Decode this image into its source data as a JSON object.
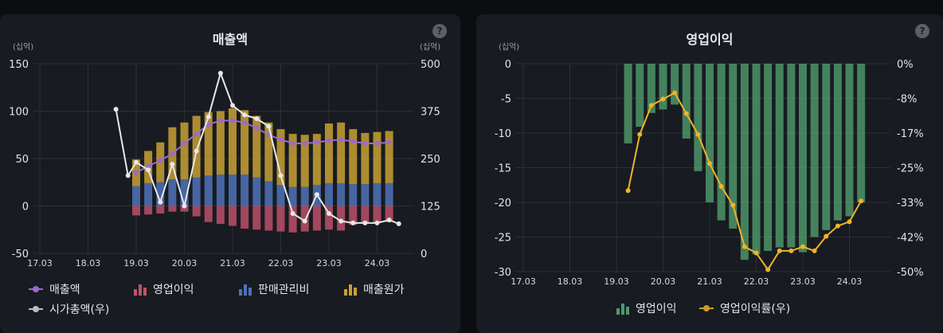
{
  "chart_data": [
    {
      "type": "bar",
      "title": "매출액",
      "y_left": {
        "unit": "(십억)",
        "min": -50,
        "max": 150,
        "ticks": [
          150,
          100,
          50,
          0,
          -50
        ]
      },
      "y_right": {
        "unit": "(십억)",
        "min": 0,
        "max": 500,
        "ticks": [
          500,
          375,
          250,
          125,
          0
        ]
      },
      "x_ticks": [
        "17.03",
        "18.03",
        "19.03",
        "20.03",
        "21.03",
        "22.03",
        "23.03",
        "24.03"
      ],
      "x": [
        19.0,
        19.25,
        19.5,
        19.75,
        20.0,
        20.25,
        20.5,
        20.75,
        21.0,
        21.25,
        21.5,
        21.75,
        22.0,
        22.25,
        22.5,
        22.75,
        23.0,
        23.25,
        23.5,
        23.75,
        24.0,
        24.25
      ],
      "series": [
        {
          "name": "매출원가",
          "kind": "bar-stack",
          "color": "#c9a032",
          "values": [
            28,
            34,
            42,
            55,
            60,
            65,
            67,
            67,
            70,
            68,
            65,
            62,
            59,
            56,
            55,
            54,
            63,
            64,
            58,
            54,
            54,
            55
          ]
        },
        {
          "name": "판매관리비",
          "kind": "bar-stack",
          "color": "#4f72b8",
          "values": [
            21,
            24,
            25,
            28,
            28,
            30,
            32,
            33,
            33,
            33,
            30,
            26,
            22,
            20,
            20,
            22,
            24,
            24,
            23,
            23,
            24,
            24
          ]
        },
        {
          "name": "영업이익",
          "kind": "bar",
          "color": "#c2526a",
          "values": [
            -10,
            -9,
            -8,
            -6,
            -6,
            -11,
            -17,
            -19,
            -21,
            -24,
            -25,
            -26,
            -27,
            -28,
            -27,
            -26,
            -25,
            -26,
            -20,
            -18,
            -18,
            -17
          ]
        },
        {
          "name": "매출액",
          "kind": "line",
          "color": "#9a6ad0",
          "values": [
            35,
            42,
            48,
            55,
            66,
            76,
            86,
            90,
            90,
            88,
            82,
            75,
            70,
            66,
            66,
            67,
            69,
            70,
            68,
            66,
            66,
            67
          ]
        },
        {
          "name": "시가총액(우)",
          "kind": "line",
          "axis": "right",
          "color": "#e8e8e8",
          "x": [
            18.58,
            18.83,
            19.0,
            19.25,
            19.5,
            19.75,
            20.0,
            20.25,
            20.5,
            20.75,
            21.0,
            21.25,
            21.5,
            21.75,
            22.0,
            22.25,
            22.5,
            22.75,
            23.0,
            23.25,
            23.5,
            23.75,
            24.0,
            24.25,
            24.45
          ],
          "values": [
            380,
            205,
            240,
            220,
            135,
            235,
            125,
            270,
            360,
            475,
            390,
            365,
            355,
            335,
            205,
            105,
            85,
            155,
            105,
            85,
            80,
            80,
            80,
            88,
            78
          ]
        }
      ],
      "legend": [
        "매출액",
        "영업이익",
        "판매관리비",
        "매출원가",
        "시가총액(우)"
      ],
      "legend_position": "bottom"
    },
    {
      "type": "bar",
      "title": "영업이익",
      "y_left": {
        "unit": "(십억)",
        "min": -30,
        "max": 0,
        "ticks": [
          0,
          -5,
          -10,
          -15,
          -20,
          -25,
          -30
        ]
      },
      "y_right": {
        "unit": "",
        "min": -50,
        "max": 0,
        "ticks": [
          "0%",
          "-8%",
          "-17%",
          "-25%",
          "-33%",
          "-42%",
          "-50%"
        ]
      },
      "x_ticks": [
        "17.03",
        "18.03",
        "19.03",
        "20.03",
        "21.03",
        "22.03",
        "23.03",
        "24.03"
      ],
      "x": [
        19.25,
        19.5,
        19.75,
        20.0,
        20.25,
        20.5,
        20.75,
        21.0,
        21.25,
        21.5,
        21.75,
        22.0,
        22.25,
        22.5,
        22.75,
        23.0,
        23.25,
        23.5,
        23.75,
        24.0,
        24.25
      ],
      "series": [
        {
          "name": "영업이익",
          "kind": "bar",
          "color": "#4e9a6a",
          "values": [
            -11.5,
            -9.1,
            -7.1,
            -6.6,
            -5.9,
            -10.8,
            -15.5,
            -20,
            -22.6,
            -23.8,
            -28.3,
            -27.5,
            -27,
            -26.5,
            -26.5,
            -27.2,
            -25,
            -24,
            -22.6,
            -22,
            -20
          ]
        },
        {
          "name": "영업이익률(우)",
          "kind": "line",
          "axis": "right",
          "color": "#f0b429",
          "values": [
            -30.5,
            -17,
            -10,
            -8.5,
            -7,
            -12,
            -17,
            -24,
            -29.5,
            -34,
            -44,
            -45.5,
            -49.5,
            -45,
            -45,
            -44,
            -45,
            -41.5,
            -39,
            -38,
            -33
          ]
        }
      ],
      "legend": [
        "영업이익",
        "영업이익률(우)"
      ],
      "legend_position": "bottom"
    }
  ]
}
